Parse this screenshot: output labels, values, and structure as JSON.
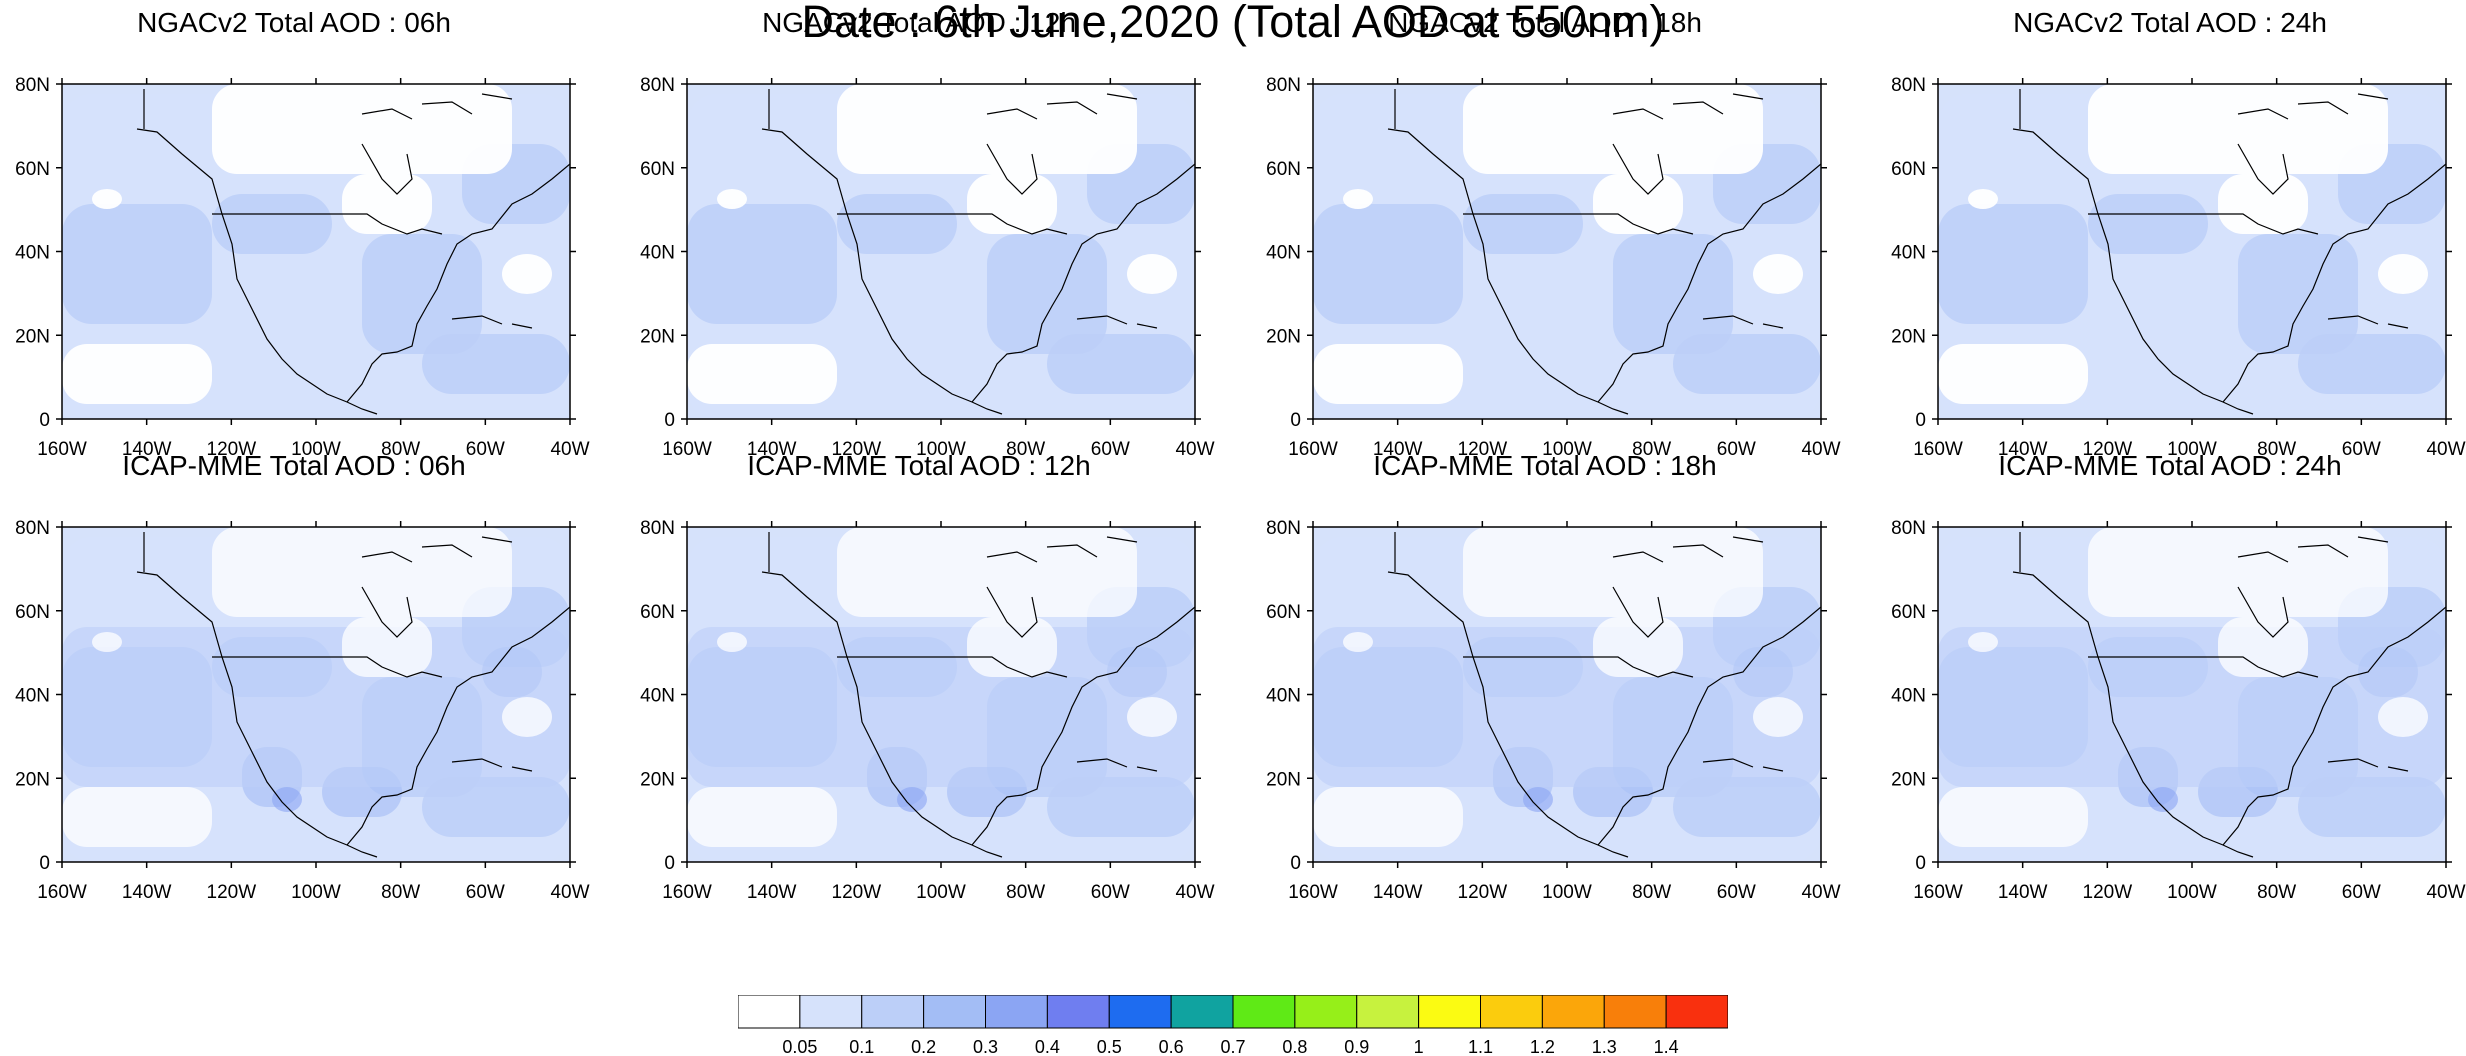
{
  "title": "Date : 6th June,2020 (Total AOD at 550nm)",
  "panels": [
    {
      "title": "NGACv2 Total AOD : 06h",
      "model": "NGACv2",
      "lead": "06h"
    },
    {
      "title": "NGACv2 Total AOD : 12h",
      "model": "NGACv2",
      "lead": "12h"
    },
    {
      "title": "NGACv2 Total AOD : 18h",
      "model": "NGACv2",
      "lead": "18h"
    },
    {
      "title": "NGACv2 Total AOD : 24h",
      "model": "NGACv2",
      "lead": "24h"
    },
    {
      "title": "ICAP-MME Total AOD : 06h",
      "model": "ICAP-MME",
      "lead": "06h"
    },
    {
      "title": "ICAP-MME Total AOD : 12h",
      "model": "ICAP-MME",
      "lead": "12h"
    },
    {
      "title": "ICAP-MME Total AOD : 18h",
      "model": "ICAP-MME",
      "lead": "18h"
    },
    {
      "title": "ICAP-MME Total AOD : 24h",
      "model": "ICAP-MME",
      "lead": "24h"
    }
  ],
  "axes": {
    "lat_ticks": [
      "0",
      "20N",
      "40N",
      "60N",
      "80N"
    ],
    "lon_ticks": [
      "160W",
      "140W",
      "120W",
      "100W",
      "80W",
      "60W",
      "40W"
    ],
    "lat_range": [
      0,
      80
    ],
    "lon_range": [
      -160,
      -40
    ]
  },
  "colorbar": {
    "colors": [
      "#ffffff",
      "#d6e2fb",
      "#bccff8",
      "#a3bdf5",
      "#8ba5f3",
      "#6f7ef0",
      "#1e6cf0",
      "#10a3a0",
      "#5fea16",
      "#96ef19",
      "#c7f23e",
      "#fbfb12",
      "#fbcc0d",
      "#fba60a",
      "#f87f0a",
      "#f9300e"
    ],
    "labels": [
      "0.05",
      "0.1",
      "0.2",
      "0.3",
      "0.4",
      "0.5",
      "0.6",
      "0.7",
      "0.8",
      "0.9",
      "1",
      "1.1",
      "1.2",
      "1.3",
      "1.4"
    ]
  },
  "colors": {
    "land_line": "#000000",
    "frame": "#000000"
  }
}
